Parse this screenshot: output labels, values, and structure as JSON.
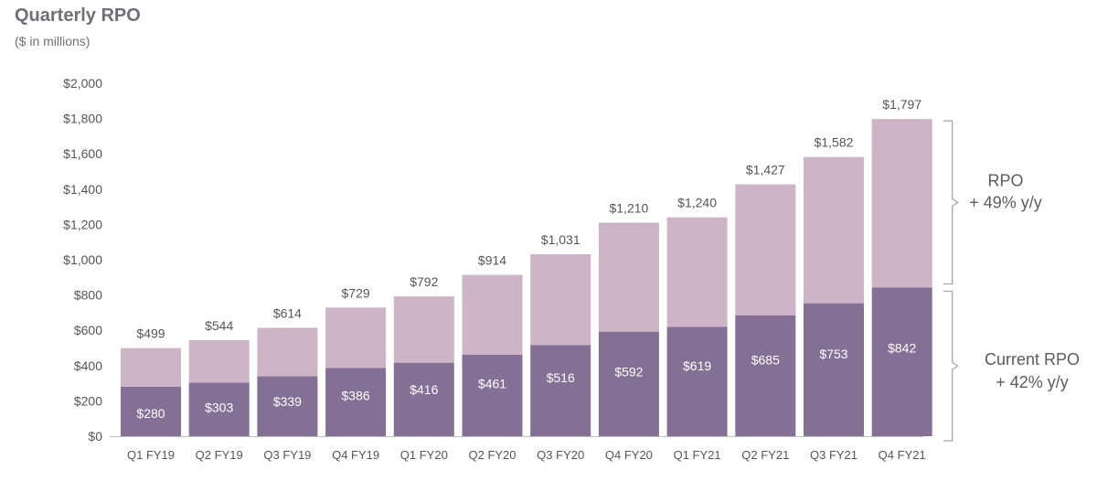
{
  "chart_data": {
    "type": "bar",
    "stacked": true,
    "title": "Quarterly RPO",
    "subtitle": "($ in millions)",
    "categories": [
      "Q1 FY19",
      "Q2 FY19",
      "Q3 FY19",
      "Q4 FY19",
      "Q1 FY20",
      "Q2 FY20",
      "Q3 FY20",
      "Q4 FY20",
      "Q1 FY21",
      "Q2 FY21",
      "Q3 FY21",
      "Q4 FY21"
    ],
    "totals": [
      499,
      544,
      614,
      729,
      792,
      914,
      1031,
      1210,
      1240,
      1427,
      1582,
      1797
    ],
    "total_labels": [
      "$499",
      "$544",
      "$614",
      "$729",
      "$792",
      "$914",
      "$1,031",
      "$1,210",
      "$1,240",
      "$1,427",
      "$1,582",
      "$1,797"
    ],
    "series": [
      {
        "values": [
          280,
          303,
          339,
          386,
          416,
          461,
          516,
          592,
          619,
          685,
          753,
          842
        ],
        "labels": [
          "$280",
          "$303",
          "$339",
          "$386",
          "$416",
          "$461",
          "$516",
          "$592",
          "$619",
          "$685",
          "$753",
          "$842"
        ],
        "color": "#846f95"
      },
      {
        "values": [
          219,
          241,
          275,
          343,
          376,
          453,
          515,
          618,
          621,
          742,
          829,
          955
        ],
        "color": "#cdb4c6"
      }
    ],
    "ylim": [
      0,
      2000
    ],
    "yticks": [
      0,
      200,
      400,
      600,
      800,
      1000,
      1200,
      1400,
      1600,
      1800,
      2000
    ],
    "ytick_labels": [
      "$0",
      "$200",
      "$400",
      "$600",
      "$800",
      "$1,000",
      "$1,200",
      "$1,400",
      "$1,600",
      "$1,800",
      "$2,000"
    ],
    "grid": false,
    "annotations": [
      {
        "lines": [
          "RPO",
          "+ 49% y/y"
        ]
      },
      {
        "lines": [
          "Current RPO",
          "+ 42% y/y"
        ]
      }
    ]
  },
  "colors": {
    "bracket": "#a9a9ad",
    "text": "#555555",
    "title": "#6f6f75"
  }
}
